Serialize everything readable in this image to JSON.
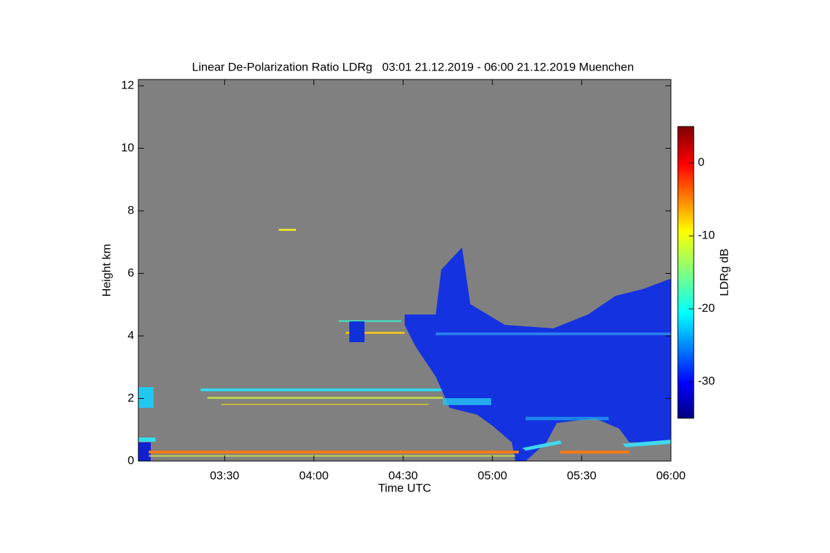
{
  "chart_data": {
    "type": "heatmap",
    "title": "Linear De-Polarization Ratio LDRg   03:01 21.12.2019 - 06:00 21.12.2019 Muenchen",
    "xlabel": "Time UTC",
    "ylabel": "Height km",
    "xlim": [
      3.0167,
      6
    ],
    "xticks": [
      {
        "value": 3.5,
        "label": "03:30"
      },
      {
        "value": 4,
        "label": "04:00"
      },
      {
        "value": 4.5,
        "label": "04:30"
      },
      {
        "value": 5,
        "label": "05:00"
      },
      {
        "value": 5.5,
        "label": "05:30"
      },
      {
        "value": 6,
        "label": "06:00"
      }
    ],
    "ylim": [
      0,
      12.2
    ],
    "yticks": [
      0,
      2,
      4,
      6,
      8,
      10,
      12
    ],
    "colorbar": {
      "label": "LDRg dB",
      "lim": [
        -35,
        5
      ],
      "ticks": [
        0,
        -10,
        -20,
        -30
      ]
    }
  }
}
